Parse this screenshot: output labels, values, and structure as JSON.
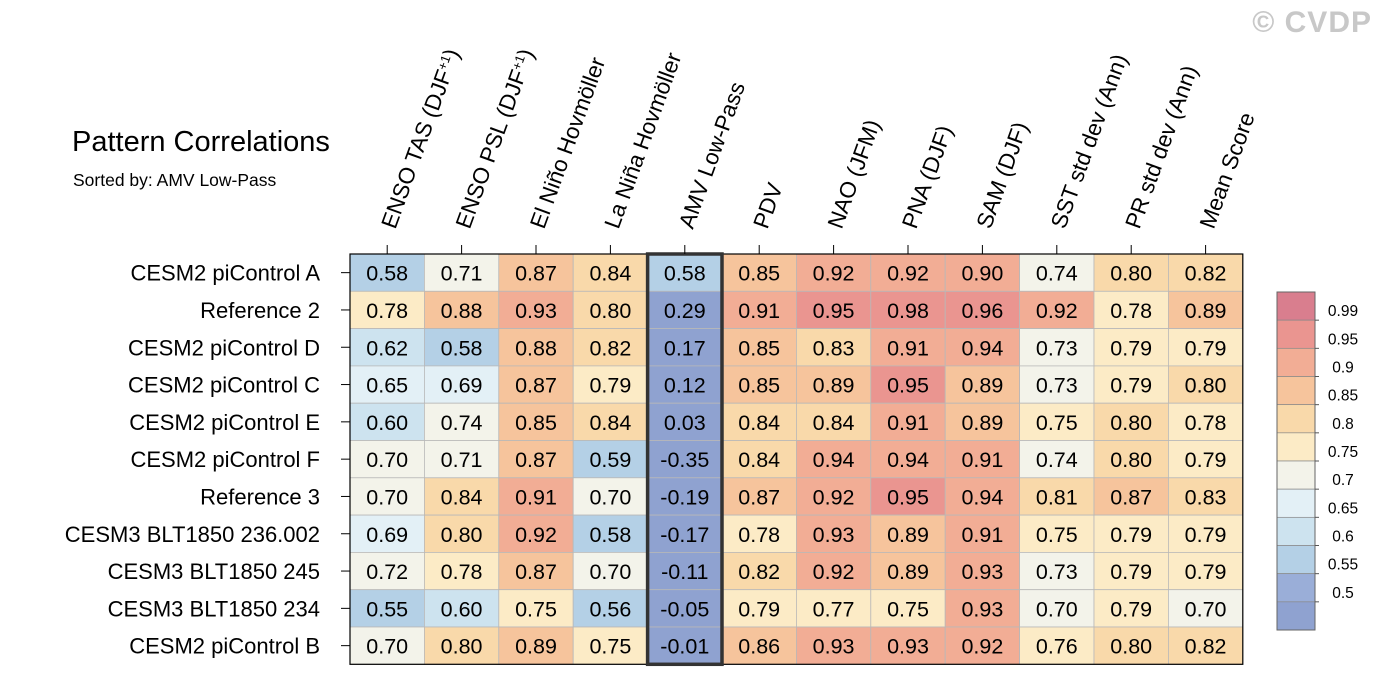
{
  "title": "Pattern Correlations",
  "subtitle": "Sorted by: AMV Low-Pass",
  "watermark": "© CVDP",
  "chart_data": {
    "type": "heatmap",
    "highlight_column": "AMV Low-Pass",
    "columns": [
      {
        "pre": "ENSO TAS (DJF",
        "sup": "+1",
        "post": ")"
      },
      {
        "pre": "ENSO PSL (DJF",
        "sup": "+1",
        "post": ")"
      },
      {
        "pre": "El Niño Hovmöller"
      },
      {
        "pre": "La Niña Hovmöller"
      },
      {
        "pre": "AMV Low-Pass"
      },
      {
        "pre": "PDV"
      },
      {
        "pre": "NAO (JFM)"
      },
      {
        "pre": "PNA (DJF)"
      },
      {
        "pre": "SAM (DJF)"
      },
      {
        "pre": "SST std dev (Ann)"
      },
      {
        "pre": "PR std dev (Ann)"
      },
      {
        "pre": "Mean Score"
      }
    ],
    "rows": [
      "CESM2 piControl A",
      "Reference 2",
      "CESM2 piControl D",
      "CESM2 piControl C",
      "CESM2 piControl E",
      "CESM2 piControl F",
      "Reference 3",
      "CESM3 BLT1850 236.002",
      "CESM3 BLT1850 245",
      "CESM3 BLT1850 234",
      "CESM2 piControl B"
    ],
    "values": [
      [
        "0.58",
        "0.71",
        "0.87",
        "0.84",
        "0.58",
        "0.85",
        "0.92",
        "0.92",
        "0.90",
        "0.74",
        "0.80",
        "0.82"
      ],
      [
        "0.78",
        "0.88",
        "0.93",
        "0.80",
        "0.29",
        "0.91",
        "0.95",
        "0.98",
        "0.96",
        "0.92",
        "0.78",
        "0.89"
      ],
      [
        "0.62",
        "0.58",
        "0.88",
        "0.82",
        "0.17",
        "0.85",
        "0.83",
        "0.91",
        "0.94",
        "0.73",
        "0.79",
        "0.79"
      ],
      [
        "0.65",
        "0.69",
        "0.87",
        "0.79",
        "0.12",
        "0.85",
        "0.89",
        "0.95",
        "0.89",
        "0.73",
        "0.79",
        "0.80"
      ],
      [
        "0.60",
        "0.74",
        "0.85",
        "0.84",
        "0.03",
        "0.84",
        "0.84",
        "0.91",
        "0.89",
        "0.75",
        "0.80",
        "0.78"
      ],
      [
        "0.70",
        "0.71",
        "0.87",
        "0.59",
        "-0.35",
        "0.84",
        "0.94",
        "0.94",
        "0.91",
        "0.74",
        "0.80",
        "0.79"
      ],
      [
        "0.70",
        "0.84",
        "0.91",
        "0.70",
        "-0.19",
        "0.87",
        "0.92",
        "0.95",
        "0.94",
        "0.81",
        "0.87",
        "0.83"
      ],
      [
        "0.69",
        "0.80",
        "0.92",
        "0.58",
        "-0.17",
        "0.78",
        "0.93",
        "0.89",
        "0.91",
        "0.75",
        "0.79",
        "0.79"
      ],
      [
        "0.72",
        "0.78",
        "0.87",
        "0.70",
        "-0.11",
        "0.82",
        "0.92",
        "0.89",
        "0.93",
        "0.73",
        "0.79",
        "0.79"
      ],
      [
        "0.55",
        "0.60",
        "0.75",
        "0.56",
        "-0.05",
        "0.79",
        "0.77",
        "0.75",
        "0.93",
        "0.70",
        "0.79",
        "0.70"
      ],
      [
        "0.70",
        "0.80",
        "0.89",
        "0.75",
        "-0.01",
        "0.86",
        "0.93",
        "0.93",
        "0.92",
        "0.76",
        "0.80",
        "0.82"
      ]
    ],
    "colorbar": {
      "labels": [
        "0.99",
        "0.95",
        "0.9",
        "0.85",
        "0.8",
        "0.75",
        "0.7",
        "0.65",
        "0.6",
        "0.55",
        "0.5"
      ],
      "colors": [
        "#d97e8e",
        "#ea9590",
        "#f2ad95",
        "#f6c49c",
        "#f9d9aa",
        "#fcebc6",
        "#f3f3ea",
        "#e3f0f6",
        "#cde3ef",
        "#b4d0e6",
        "#9aaed8",
        "#8fa2d0"
      ]
    }
  }
}
